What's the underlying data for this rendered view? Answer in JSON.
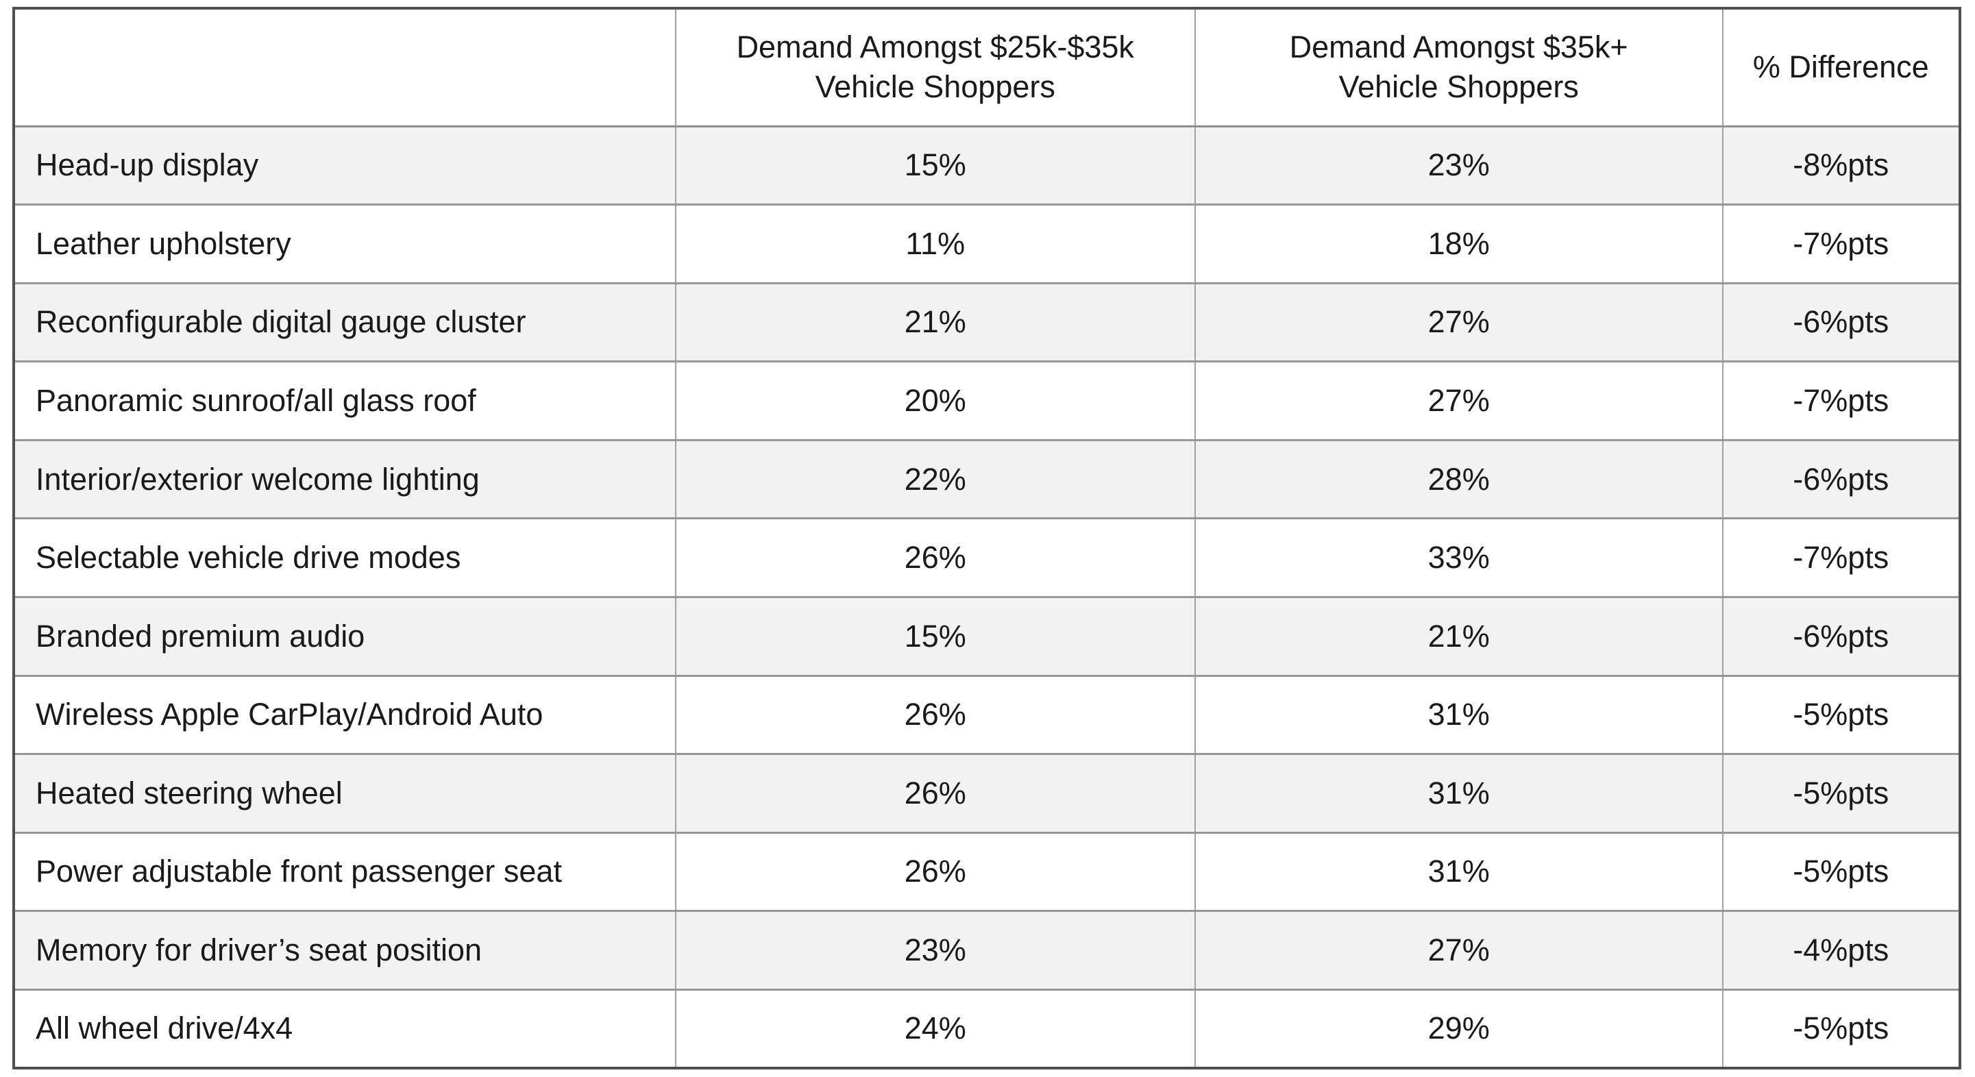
{
  "table": {
    "header": {
      "feature": "",
      "demand_25_35": {
        "line1": "Demand Amongst $25k-$35k",
        "line2": "Vehicle Shoppers"
      },
      "demand_35plus": {
        "line1": "Demand Amongst $35k+",
        "line2": "Vehicle Shoppers"
      },
      "difference": {
        "line1": "% Difference"
      }
    },
    "rows": [
      {
        "feature": "Head-up display",
        "demand_25_35": "15%",
        "demand_35plus": "23%",
        "diff": "-8%pts"
      },
      {
        "feature": "Leather upholstery",
        "demand_25_35": "11%",
        "demand_35plus": "18%",
        "diff": "-7%pts"
      },
      {
        "feature": "Reconfigurable digital gauge cluster",
        "demand_25_35": "21%",
        "demand_35plus": "27%",
        "diff": "-6%pts"
      },
      {
        "feature": "Panoramic sunroof/all glass roof",
        "demand_25_35": "20%",
        "demand_35plus": "27%",
        "diff": "-7%pts"
      },
      {
        "feature": "Interior/exterior welcome lighting",
        "demand_25_35": "22%",
        "demand_35plus": "28%",
        "diff": "-6%pts"
      },
      {
        "feature": "Selectable vehicle drive modes",
        "demand_25_35": "26%",
        "demand_35plus": "33%",
        "diff": "-7%pts"
      },
      {
        "feature": "Branded premium audio",
        "demand_25_35": "15%",
        "demand_35plus": "21%",
        "diff": "-6%pts"
      },
      {
        "feature": "Wireless Apple CarPlay/Android Auto",
        "demand_25_35": "26%",
        "demand_35plus": "31%",
        "diff": "-5%pts"
      },
      {
        "feature": "Heated steering wheel",
        "demand_25_35": "26%",
        "demand_35plus": "31%",
        "diff": "-5%pts"
      },
      {
        "feature": "Power adjustable front passenger seat",
        "demand_25_35": "26%",
        "demand_35plus": "31%",
        "diff": "-5%pts"
      },
      {
        "feature": "Memory for driver’s seat position",
        "demand_25_35": "23%",
        "demand_35plus": "27%",
        "diff": "-4%pts"
      },
      {
        "feature": "All wheel drive/4x4",
        "demand_25_35": "24%",
        "demand_35plus": "29%",
        "diff": "-5%pts"
      }
    ],
    "colors": {
      "row_stripe": "#f2f2f2",
      "row_plain": "#ffffff",
      "border_outer": "#4f4f4f",
      "border_inner": "#a0a0a0",
      "text": "#1a1a1a"
    }
  }
}
